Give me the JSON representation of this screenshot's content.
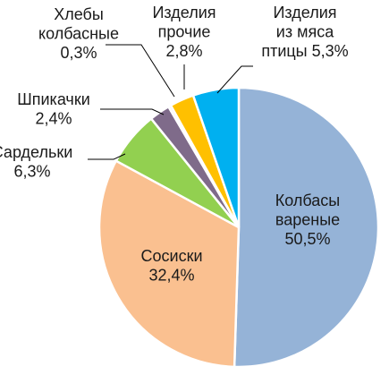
{
  "chart_data": {
    "type": "pie",
    "title": "",
    "start_angle_deg": 0,
    "direction": "clockwise",
    "slices": [
      {
        "label_lines": [
          "Колбасы",
          "вареные"
        ],
        "value_label": "50,5%",
        "value": 50.5,
        "color": "#95b3d7"
      },
      {
        "label_lines": [
          "Сосиски"
        ],
        "value_label": "32,4%",
        "value": 32.4,
        "color": "#fac090"
      },
      {
        "label_lines": [
          "Сардельки"
        ],
        "value_label": "6,3%",
        "value": 6.3,
        "color": "#92d050"
      },
      {
        "label_lines": [
          "Шпикачки"
        ],
        "value_label": "2,4%",
        "value": 2.4,
        "color": "#7f6b8a"
      },
      {
        "label_lines": [
          "Хлебы",
          "колбасные"
        ],
        "value_label": "0,3%",
        "value": 0.3,
        "color": "#e6e6e6"
      },
      {
        "label_lines": [
          "Изделия",
          "прочие"
        ],
        "value_label": "2,8%",
        "value": 2.8,
        "color": "#ffc000"
      },
      {
        "label_lines": [
          "Изделия",
          "из мяса",
          "птицы"
        ],
        "value_label": "5,3%",
        "value": 5.3,
        "color": "#00b0f0"
      }
    ]
  }
}
